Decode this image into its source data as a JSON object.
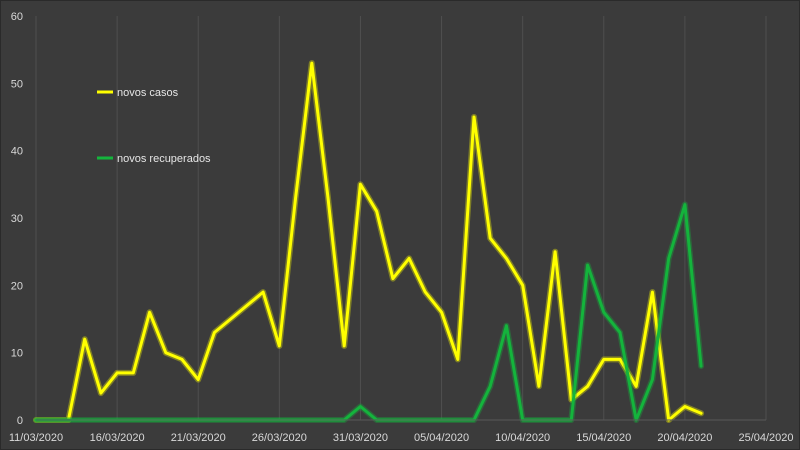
{
  "chart_data": {
    "type": "line",
    "title": "",
    "xlabel": "",
    "ylabel": "",
    "x_ticks": [
      "11/03/2020",
      "16/03/2020",
      "21/03/2020",
      "26/03/2020",
      "31/03/2020",
      "05/04/2020",
      "10/04/2020",
      "15/04/2020",
      "20/04/2020",
      "25/04/2020"
    ],
    "y_ticks": [
      0,
      10,
      20,
      30,
      40,
      50,
      60
    ],
    "ylim": [
      0,
      60
    ],
    "xlim": [
      "11/03/2020",
      "25/04/2020"
    ],
    "grid": "vertical",
    "legend_position": "top-left",
    "x": [
      "11/03/2020",
      "12/03/2020",
      "13/03/2020",
      "14/03/2020",
      "15/03/2020",
      "16/03/2020",
      "17/03/2020",
      "18/03/2020",
      "19/03/2020",
      "20/03/2020",
      "21/03/2020",
      "22/03/2020",
      "23/03/2020",
      "24/03/2020",
      "25/03/2020",
      "26/03/2020",
      "27/03/2020",
      "28/03/2020",
      "29/03/2020",
      "30/03/2020",
      "31/03/2020",
      "01/04/2020",
      "02/04/2020",
      "03/04/2020",
      "04/04/2020",
      "05/04/2020",
      "06/04/2020",
      "07/04/2020",
      "08/04/2020",
      "09/04/2020",
      "10/04/2020",
      "11/04/2020",
      "12/04/2020",
      "13/04/2020",
      "14/04/2020",
      "15/04/2020",
      "16/04/2020",
      "17/04/2020",
      "18/04/2020",
      "19/04/2020",
      "20/04/2020",
      "21/04/2020",
      "22/04/2020"
    ],
    "series": [
      {
        "name": "novos casos",
        "color": "#ffff00",
        "values": [
          0,
          0,
          0,
          12,
          4,
          7,
          7,
          16,
          10,
          9,
          6,
          13,
          15,
          17,
          19,
          11,
          33,
          53,
          33,
          11,
          35,
          31,
          21,
          24,
          19,
          16,
          9,
          45,
          27,
          24,
          20,
          5,
          25,
          3,
          5,
          9,
          9,
          5,
          19,
          0,
          2,
          1,
          null
        ]
      },
      {
        "name": "novos recuperados",
        "color": "#14b43c",
        "values": [
          0,
          0,
          0,
          0,
          0,
          0,
          0,
          0,
          0,
          0,
          0,
          0,
          0,
          0,
          0,
          0,
          0,
          0,
          0,
          0,
          2,
          0,
          0,
          0,
          0,
          0,
          0,
          0,
          5,
          14,
          0,
          0,
          0,
          0,
          23,
          16,
          13,
          0,
          6,
          24,
          32,
          8,
          null
        ]
      }
    ]
  }
}
